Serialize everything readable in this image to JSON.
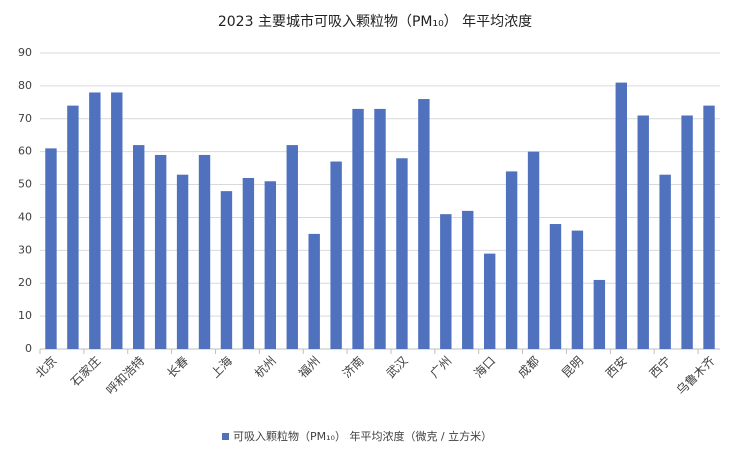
{
  "chart_data": {
    "type": "bar",
    "title": "2023 主要城市可吸入颗粒物（PM₁₀） 年平均浓度",
    "categories": [
      "北京",
      null,
      "石家庄",
      null,
      "呼和浩特",
      null,
      "长春",
      null,
      "上海",
      null,
      "杭州",
      null,
      "福州",
      null,
      "济南",
      null,
      "武汉",
      null,
      "广州",
      null,
      "海口",
      null,
      "成都",
      null,
      "昆明",
      null,
      "西安",
      null,
      "西宁",
      null,
      "乌鲁木齐"
    ],
    "series": [
      {
        "name": "可吸入颗粒物（PM₁₀） 年平均浓度（微克 / 立方米）",
        "color": "#4f71be",
        "values": [
          61,
          74,
          78,
          78,
          62,
          59,
          53,
          59,
          48,
          52,
          51,
          62,
          35,
          57,
          73,
          73,
          58,
          76,
          41,
          42,
          29,
          54,
          60,
          38,
          36,
          21,
          81,
          71,
          53,
          71,
          74
        ]
      }
    ],
    "ylim": [
      0,
      90
    ],
    "yticks": [
      0,
      10,
      20,
      30,
      40,
      50,
      60,
      70,
      80,
      90
    ],
    "grid": true,
    "legend": "bottom"
  }
}
